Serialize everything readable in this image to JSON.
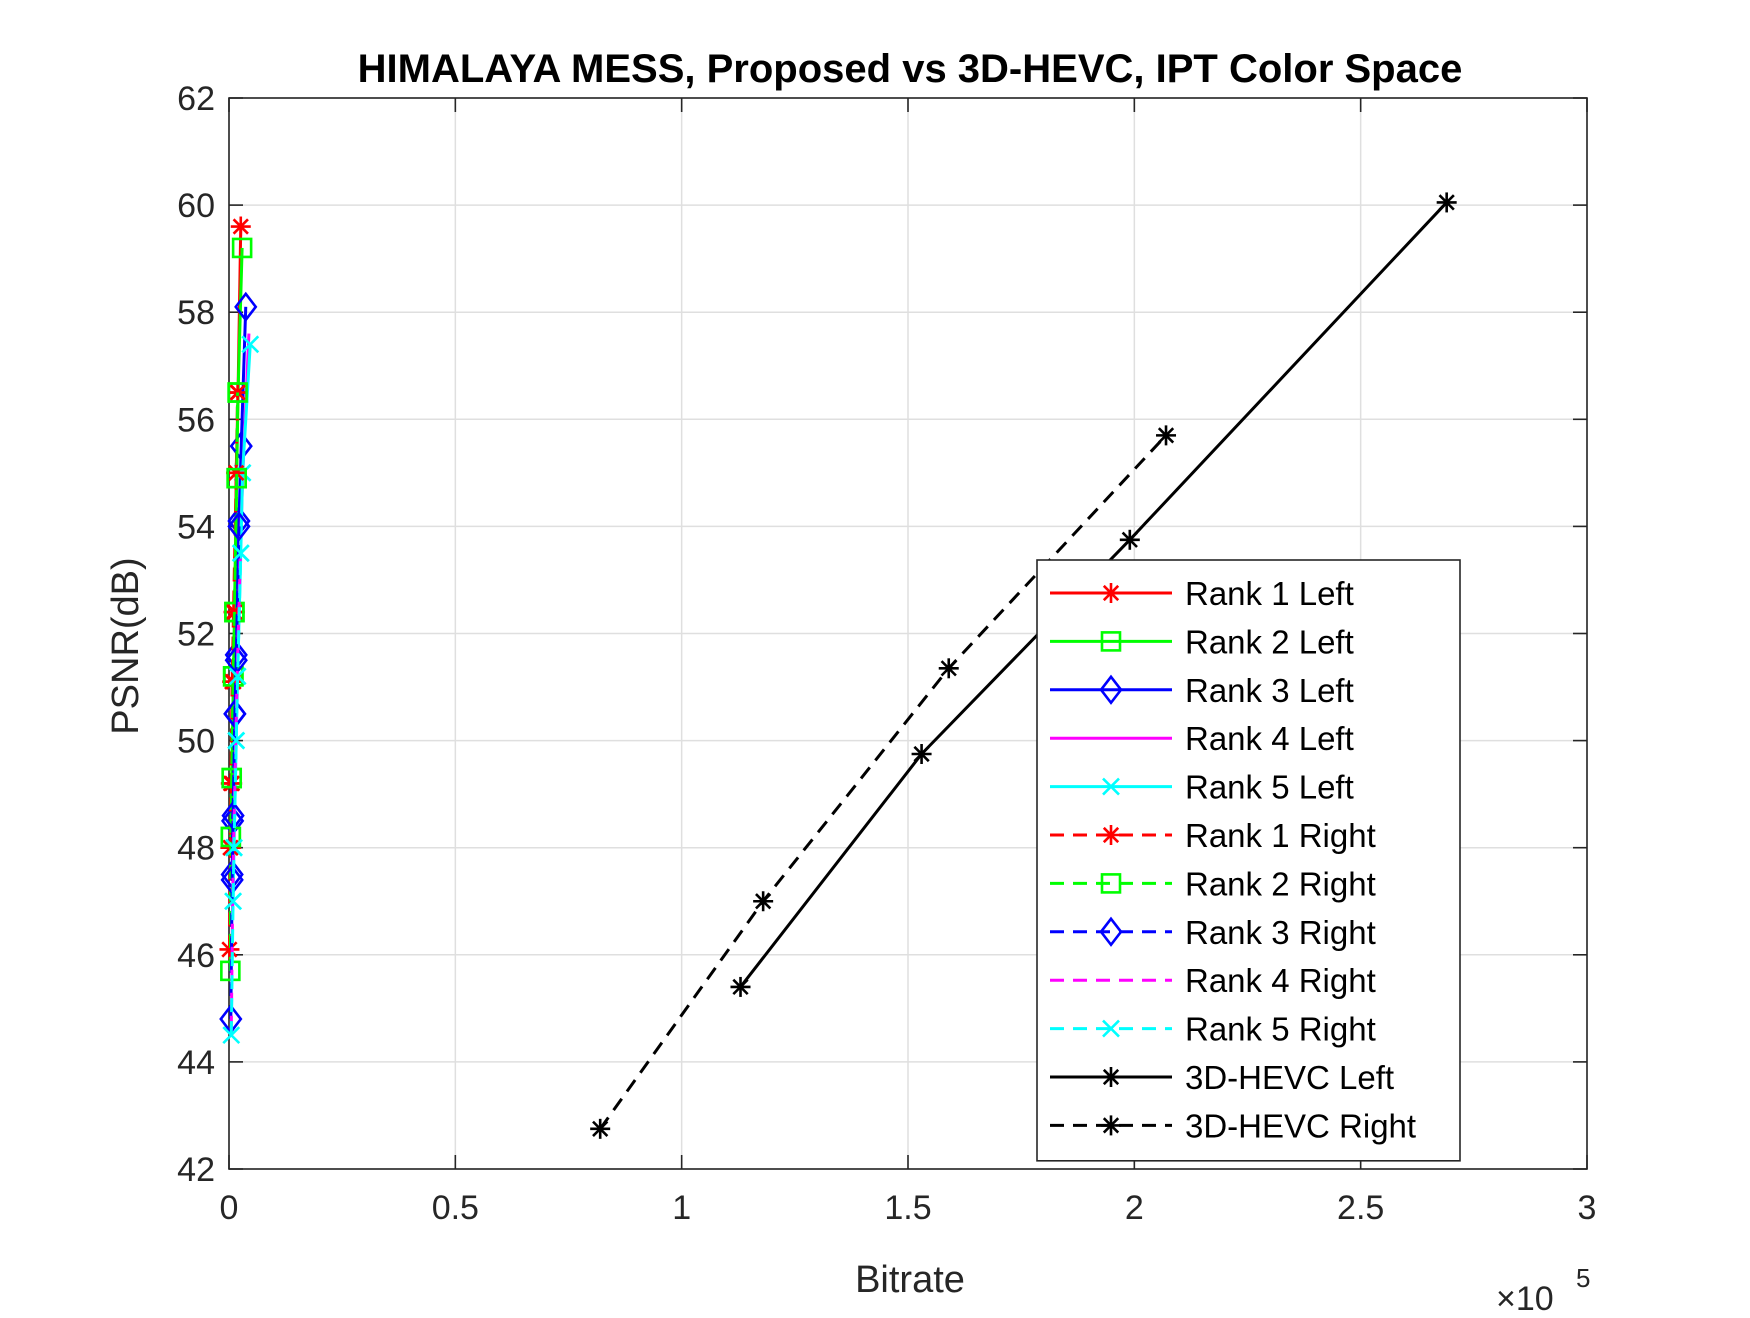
{
  "chart_data": {
    "type": "line",
    "title": "HIMALAYA MESS, Proposed vs 3D-HEVC, IPT Color Space",
    "xlabel": "Bitrate",
    "ylabel": "PSNR(dB)",
    "x_exponent_label": "×10",
    "x_exponent_power": "5",
    "xlim": [
      0,
      3
    ],
    "ylim": [
      42,
      62
    ],
    "xticks": [
      0,
      0.5,
      1,
      1.5,
      2,
      2.5,
      3
    ],
    "xtick_labels": [
      "0",
      "0.5",
      "1",
      "1.5",
      "2",
      "2.5",
      "3"
    ],
    "yticks": [
      42,
      44,
      46,
      48,
      50,
      52,
      54,
      56,
      58,
      60,
      62
    ],
    "ytick_labels": [
      "42",
      "44",
      "46",
      "48",
      "50",
      "52",
      "54",
      "56",
      "58",
      "60",
      "62"
    ],
    "grid": true,
    "legend_position": "lower-right",
    "series": [
      {
        "name": "Rank 1 Left",
        "color": "#ff0000",
        "dash": "solid",
        "marker": "asterisk",
        "points": [
          [
            0.004,
            48.0
          ],
          [
            0.007,
            49.2
          ],
          [
            0.01,
            51.1
          ],
          [
            0.013,
            52.4
          ],
          [
            0.016,
            55.0
          ],
          [
            0.02,
            56.5
          ],
          [
            0.026,
            59.6
          ]
        ]
      },
      {
        "name": "Rank 2 Left",
        "color": "#00ff00",
        "dash": "solid",
        "marker": "square",
        "points": [
          [
            0.004,
            48.2
          ],
          [
            0.006,
            49.3
          ],
          [
            0.01,
            51.2
          ],
          [
            0.012,
            52.4
          ],
          [
            0.017,
            54.9
          ],
          [
            0.02,
            56.5
          ],
          [
            0.029,
            59.2
          ]
        ]
      },
      {
        "name": "Rank 3 Left",
        "color": "#0000ff",
        "dash": "solid",
        "marker": "diamond",
        "points": [
          [
            0.007,
            47.5
          ],
          [
            0.008,
            48.5
          ],
          [
            0.013,
            50.5
          ],
          [
            0.016,
            51.6
          ],
          [
            0.022,
            54.1
          ],
          [
            0.027,
            55.5
          ],
          [
            0.037,
            58.1
          ]
        ]
      },
      {
        "name": "Rank 4 Left",
        "color": "#ff00ff",
        "dash": "solid",
        "marker": "none",
        "points": [
          [
            0.008,
            46.9
          ],
          [
            0.01,
            48.0
          ],
          [
            0.015,
            50.0
          ],
          [
            0.018,
            51.2
          ],
          [
            0.025,
            53.6
          ],
          [
            0.031,
            55.1
          ],
          [
            0.044,
            57.6
          ]
        ]
      },
      {
        "name": "Rank 5 Left",
        "color": "#00ffff",
        "dash": "solid",
        "marker": "x",
        "points": [
          [
            0.009,
            47.0
          ],
          [
            0.011,
            48.0
          ],
          [
            0.016,
            50.0
          ],
          [
            0.019,
            51.2
          ],
          [
            0.026,
            53.5
          ],
          [
            0.03,
            55.0
          ],
          [
            0.047,
            57.4
          ]
        ]
      },
      {
        "name": "Rank 1 Right",
        "color": "#ff0000",
        "dash": "dashed",
        "marker": "asterisk",
        "points": [
          [
            0.001,
            46.1
          ],
          [
            0.003,
            48.0
          ],
          [
            0.004,
            49.2
          ],
          [
            0.007,
            51.1
          ],
          [
            0.01,
            52.4
          ],
          [
            0.016,
            55.0
          ],
          [
            0.019,
            56.5
          ]
        ]
      },
      {
        "name": "Rank 2 Right",
        "color": "#00ff00",
        "dash": "dashed",
        "marker": "square",
        "points": [
          [
            0.003,
            45.7
          ],
          [
            0.004,
            48.2
          ],
          [
            0.006,
            49.3
          ],
          [
            0.009,
            51.2
          ],
          [
            0.012,
            52.4
          ],
          [
            0.017,
            54.9
          ],
          [
            0.019,
            56.5
          ]
        ]
      },
      {
        "name": "Rank 3 Right",
        "color": "#0000ff",
        "dash": "dashed",
        "marker": "diamond",
        "points": [
          [
            0.004,
            44.8
          ],
          [
            0.007,
            47.4
          ],
          [
            0.009,
            48.6
          ],
          [
            0.013,
            50.5
          ],
          [
            0.016,
            51.5
          ],
          [
            0.022,
            54.0
          ]
        ]
      },
      {
        "name": "Rank 4 Right",
        "color": "#ff00ff",
        "dash": "dashed",
        "marker": "none",
        "points": [
          [
            0.005,
            44.6
          ],
          [
            0.008,
            47.0
          ],
          [
            0.01,
            48.0
          ],
          [
            0.015,
            50.0
          ],
          [
            0.018,
            51.2
          ],
          [
            0.025,
            53.4
          ]
        ]
      },
      {
        "name": "Rank 5 Right",
        "color": "#00ffff",
        "dash": "dashed",
        "marker": "x",
        "points": [
          [
            0.005,
            44.5
          ],
          [
            0.009,
            47.0
          ],
          [
            0.011,
            48.0
          ],
          [
            0.016,
            50.0
          ],
          [
            0.019,
            51.2
          ],
          [
            0.026,
            53.5
          ]
        ]
      },
      {
        "name": "3D-HEVC Left",
        "color": "#000000",
        "dash": "solid",
        "marker": "asterisk",
        "points": [
          [
            1.13,
            45.4
          ],
          [
            1.53,
            49.75
          ],
          [
            1.99,
            53.75
          ],
          [
            2.69,
            60.05
          ]
        ]
      },
      {
        "name": "3D-HEVC Right",
        "color": "#000000",
        "dash": "dashed",
        "marker": "asterisk",
        "points": [
          [
            0.82,
            42.75
          ],
          [
            1.18,
            47.0
          ],
          [
            1.59,
            51.35
          ],
          [
            2.07,
            55.7
          ]
        ]
      }
    ]
  }
}
